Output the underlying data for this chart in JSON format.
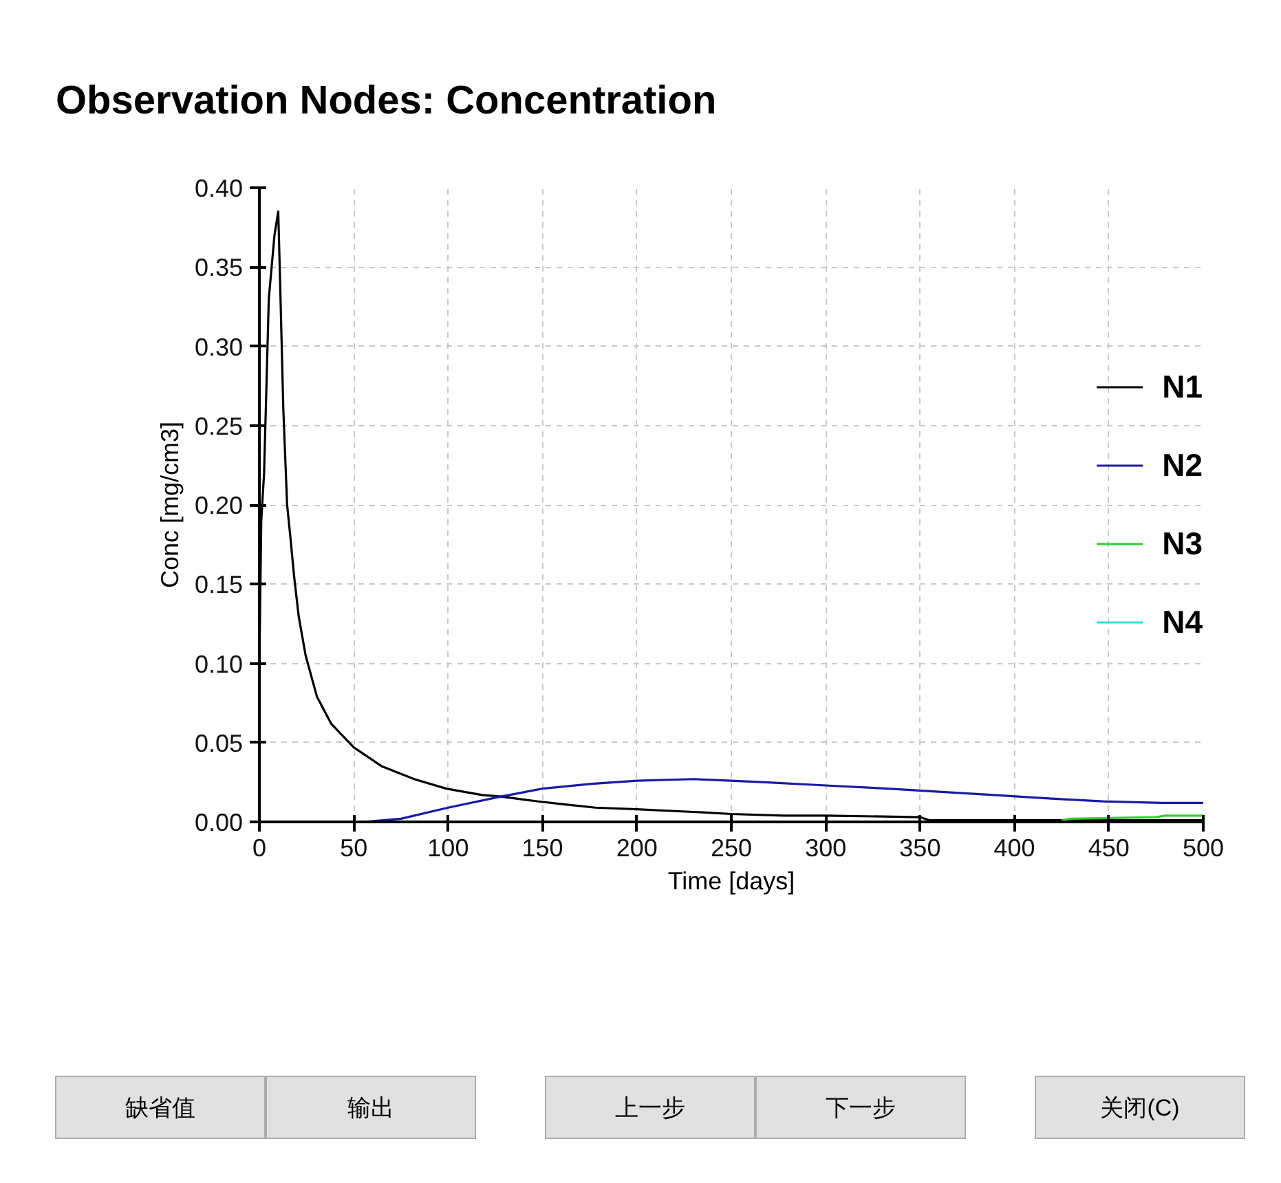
{
  "chart_data": {
    "type": "line",
    "title": "Observation Nodes: Concentration",
    "xlabel": "Time [days]",
    "ylabel": "Conc [mg/cm3]",
    "xlim": [
      0,
      500
    ],
    "ylim": [
      0,
      0.4
    ],
    "xticks": [
      0,
      50,
      100,
      150,
      200,
      250,
      300,
      350,
      400,
      450,
      500
    ],
    "yticks": [
      {
        "value": 0,
        "label": "0.00"
      },
      {
        "value": 0.05,
        "label": "0.05"
      },
      {
        "value": 0.1,
        "label": "0.10"
      },
      {
        "value": 0.15,
        "label": "0.15"
      },
      {
        "value": 0.2,
        "label": "0.20"
      },
      {
        "value": 0.25,
        "label": "0.25"
      },
      {
        "value": 0.3,
        "label": "0.30"
      },
      {
        "value": 0.35,
        "label": "0.35"
      },
      {
        "value": 0.4,
        "label": "0.40"
      }
    ],
    "grid": true,
    "legend": "right",
    "marker": "none",
    "line_style": "solid",
    "series": [
      {
        "name": "N1",
        "color": "#000000",
        "x": [
          0,
          1,
          2.5,
          5,
          8,
          10,
          11,
          12.7,
          14.7,
          16.4,
          18.4,
          20.8,
          24.5,
          30.5,
          38,
          50,
          65,
          82,
          99,
          118,
          128,
          147,
          162,
          178,
          200,
          235,
          250,
          278,
          300,
          350,
          355,
          400,
          450,
          500
        ],
        "values": [
          0.1,
          0.19,
          0.22,
          0.33,
          0.37,
          0.385,
          0.34,
          0.26,
          0.2,
          0.18,
          0.155,
          0.13,
          0.105,
          0.079,
          0.062,
          0.047,
          0.035,
          0.027,
          0.021,
          0.017,
          0.016,
          0.013,
          0.011,
          0.009,
          0.008,
          0.006,
          0.005,
          0.004,
          0.004,
          0.003,
          0.001,
          0.001,
          0.001,
          0.001
        ]
      },
      {
        "name": "N2",
        "color": "#1a1aa6",
        "x": [
          55,
          75,
          100,
          128,
          150,
          176,
          200,
          230,
          250,
          268,
          300,
          333,
          360,
          389,
          415,
          447,
          478,
          500
        ],
        "values": [
          0,
          0.002,
          0.009,
          0.016,
          0.021,
          0.024,
          0.026,
          0.027,
          0.026,
          0.025,
          0.023,
          0.021,
          0.019,
          0.017,
          0.015,
          0.013,
          0.012,
          0.012
        ]
      },
      {
        "name": "N3",
        "color": "#33cc33",
        "x": [
          425,
          430,
          475,
          480,
          500
        ],
        "values": [
          0.001,
          0.002,
          0.003,
          0.004,
          0.004
        ]
      },
      {
        "name": "N4",
        "color": "#33dddd"
      }
    ],
    "annotations": [
      "缺省值",
      "输出",
      "上一步",
      "下一步",
      "关闭(C)"
    ]
  }
}
